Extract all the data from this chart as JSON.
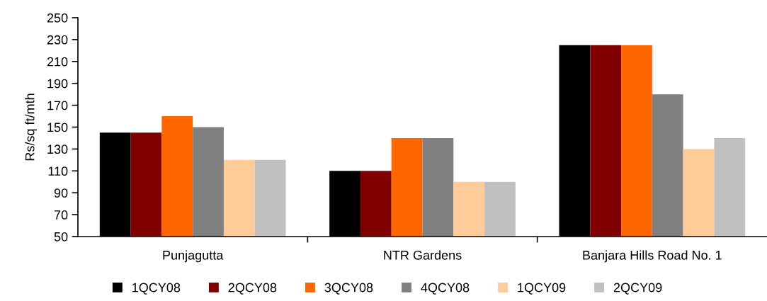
{
  "chart_data": {
    "type": "bar",
    "ylabel": "Rs/sq ft/mth",
    "categories": [
      "Punjagutta",
      "NTR Gardens",
      "Banjara Hills Road No. 1"
    ],
    "series": [
      {
        "name": "1QCY08",
        "color": "#000000",
        "values": [
          145,
          110,
          225
        ]
      },
      {
        "name": "2QCY08",
        "color": "#800000",
        "values": [
          145,
          110,
          225
        ]
      },
      {
        "name": "3QCY08",
        "color": "#ff6600",
        "values": [
          160,
          140,
          225
        ]
      },
      {
        "name": "4QCY08",
        "color": "#808080",
        "values": [
          150,
          140,
          180
        ]
      },
      {
        "name": "1QCY09",
        "color": "#ffcc99",
        "values": [
          120,
          100,
          130
        ]
      },
      {
        "name": "2QCY09",
        "color": "#c0c0c0",
        "values": [
          120,
          100,
          140
        ]
      }
    ],
    "ylim": [
      50,
      250
    ],
    "yticks": [
      50,
      70,
      90,
      110,
      130,
      150,
      170,
      190,
      210,
      230,
      250
    ],
    "grid": false,
    "legend": "bottom"
  }
}
